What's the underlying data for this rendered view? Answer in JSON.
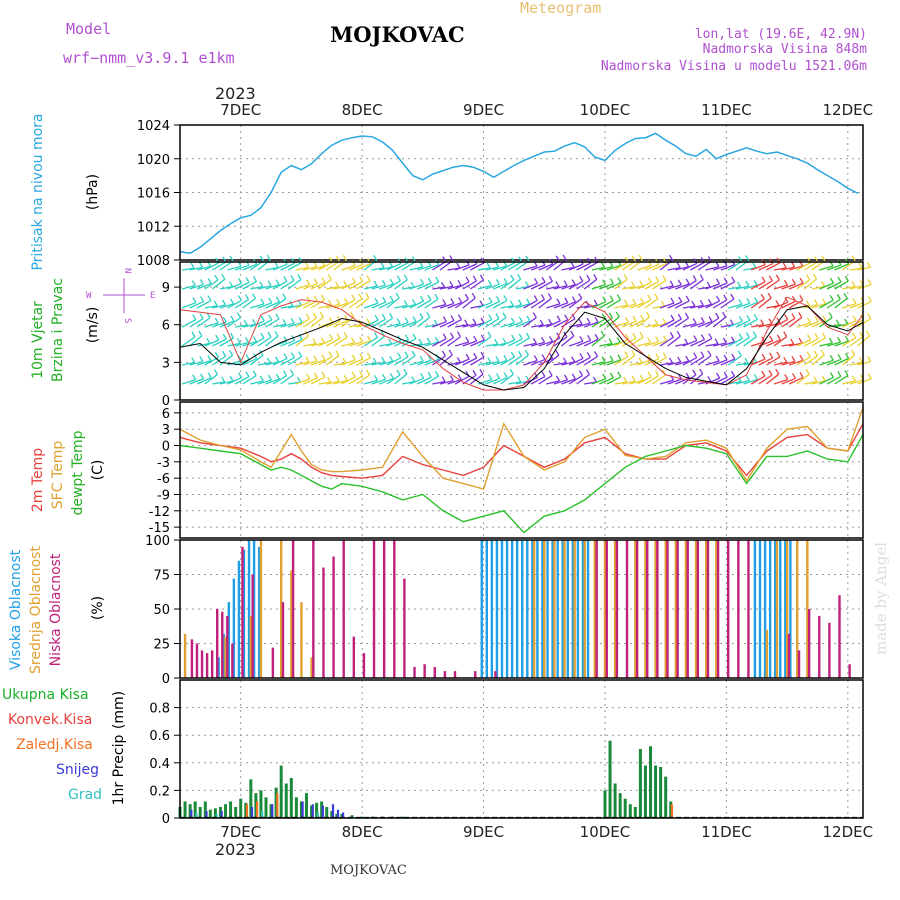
{
  "header": {
    "model_label": "Model",
    "model_name": "wrf−nmm_v3.9.1  e1km",
    "title": "MOJKOVAC",
    "subtitle": "Meteogram",
    "lonlat": "lon,lat (19.6E, 42.9N)",
    "altitude": "Nadmorska Visina 848m",
    "model_altitude": "Nadmorska Visina u modelu 1521.06m",
    "footer_station": "MOJKOVAC",
    "credit": "made by Angel"
  },
  "colors": {
    "pressure": "#2aa6e0",
    "wind_speed": "#000000",
    "temp2m": "#e8413c",
    "sfc_temp": "#e0a030",
    "dewpt": "#2cc02c",
    "high_cloud": "#1e9fe8",
    "mid_cloud": "#e0a030",
    "low_cloud": "#c0207c",
    "total_precip": "#1a8a3a",
    "conv_precip": "#e8413c",
    "frozen_precip": "#f07020",
    "snow": "#3a3ad8",
    "graupel": "#30c0c0"
  },
  "time_axis": {
    "year": "2023",
    "days": [
      "7DEC",
      "8DEC",
      "9DEC",
      "10DEC",
      "11DEC",
      "12DEC"
    ],
    "start_hour": -12,
    "end_hour": 123
  },
  "chart_data": [
    {
      "type": "line",
      "panel": "pressure",
      "ylabel": [
        "Pritisak na nivou mora",
        "(hPa)"
      ],
      "ylim": [
        1008,
        1024
      ],
      "yticks": [
        1008,
        1012,
        1016,
        1020,
        1024
      ],
      "x_hours": [
        -12,
        -10,
        -8,
        -6,
        -4,
        -2,
        0,
        2,
        4,
        6,
        8,
        10,
        12,
        14,
        16,
        18,
        20,
        22,
        24,
        26,
        28,
        30,
        32,
        34,
        36,
        38,
        40,
        42,
        44,
        46,
        48,
        50,
        52,
        54,
        56,
        58,
        60,
        62,
        64,
        66,
        68,
        70,
        72,
        74,
        76,
        78,
        80,
        82,
        84,
        86,
        88,
        90,
        92,
        94,
        96,
        98,
        100,
        102,
        104,
        106,
        108,
        110,
        112,
        114,
        116,
        118,
        120,
        122
      ],
      "values": [
        1009,
        1008.8,
        1009.5,
        1010.5,
        1011.5,
        1012.3,
        1013,
        1013.3,
        1014.2,
        1016,
        1018.4,
        1019.2,
        1018.7,
        1019.4,
        1020.6,
        1021.6,
        1022.2,
        1022.5,
        1022.7,
        1022.6,
        1022,
        1021,
        1019.5,
        1018,
        1017.5,
        1018.2,
        1018.6,
        1019,
        1019.2,
        1019,
        1018.5,
        1017.8,
        1018.5,
        1019.2,
        1019.8,
        1020.3,
        1020.8,
        1020.9,
        1021.5,
        1021.9,
        1021.4,
        1020.2,
        1019.8,
        1021,
        1021.8,
        1022.4,
        1022.5,
        1023,
        1022.2,
        1021.5,
        1020.6,
        1020.3,
        1021.1,
        1020,
        1020.5,
        1020.9,
        1021.3,
        1020.9,
        1020.6,
        1020.8,
        1020.4,
        1020,
        1019.5,
        1018.7,
        1018,
        1017.3,
        1016.5,
        1015.9
      ]
    },
    {
      "type": "line",
      "panel": "wind",
      "ylabel": [
        "10m Vjetar",
        "Brzina i Pravac",
        "(m/s)"
      ],
      "compass": [
        "N",
        "W",
        "E",
        "S"
      ],
      "ylim": [
        0,
        11
      ],
      "yticks": [
        0,
        3,
        6,
        9
      ],
      "x_hours": [
        -12,
        -8,
        -4,
        0,
        4,
        8,
        12,
        16,
        20,
        24,
        28,
        32,
        36,
        40,
        44,
        48,
        52,
        56,
        60,
        64,
        68,
        72,
        76,
        80,
        84,
        88,
        92,
        96,
        100,
        104,
        108,
        112,
        116,
        120,
        123
      ],
      "values": [
        4.2,
        4.5,
        3,
        2.8,
        3.8,
        4.6,
        5.2,
        5.8,
        6.5,
        6.2,
        5.5,
        4.8,
        4.2,
        3.2,
        2.2,
        1.2,
        0.8,
        1,
        2.5,
        5.2,
        7,
        6.5,
        4.5,
        3.5,
        2.5,
        1.8,
        1.5,
        1.2,
        2.5,
        5,
        7.2,
        7.5,
        6,
        5.5,
        6.2
      ],
      "red_series": [
        7.2,
        7,
        6.8,
        3,
        6.8,
        7.5,
        8,
        7.8,
        7.2,
        6,
        5.2,
        4.5,
        4,
        2.5,
        1.4,
        0.8,
        0.8,
        1.2,
        3,
        6,
        7.8,
        7,
        5,
        3.5,
        2,
        1.6,
        1.4,
        1.2,
        2,
        5.5,
        8.2,
        7.5,
        5.8,
        5.2,
        6.8
      ],
      "barb_colors": [
        "#2ad0c0",
        "#2ad0c0",
        "#2ad0c0",
        "#2ad0c0",
        "#2ad0c0",
        "#e8d030",
        "#e8d030",
        "#e8d030",
        "#2ad0c0",
        "#2ad0c0",
        "#2ad0c0",
        "#7a30d8",
        "#7a30d8",
        "#2ad0c0",
        "#2ad0c0",
        "#7a30d8",
        "#7a30d8",
        "#7a30d8",
        "#30c030",
        "#e8d030",
        "#e8d030",
        "#7a30d8",
        "#7a30d8",
        "#7a30d8",
        "#2ad0c0",
        "#e8413c",
        "#e8413c",
        "#e8d030",
        "#30c030",
        "#e8d030"
      ]
    },
    {
      "type": "line",
      "panel": "temperature",
      "ylabel": [
        "2m Temp",
        "SFC Temp",
        "dewpt Temp",
        "(C)"
      ],
      "ylim": [
        -17,
        8
      ],
      "yticks": [
        -15,
        -12,
        -9,
        -6,
        -3,
        0,
        3,
        6
      ],
      "x_hours": [
        -12,
        -8,
        -4,
        0,
        4,
        6,
        8,
        10,
        12,
        14,
        16,
        18,
        20,
        24,
        28,
        32,
        36,
        40,
        44,
        48,
        52,
        56,
        60,
        64,
        68,
        72,
        76,
        80,
        84,
        88,
        92,
        96,
        100,
        104,
        108,
        112,
        116,
        120,
        123
      ],
      "series": [
        {
          "name": "2m Temp",
          "color": "#e8413c",
          "values": [
            1.5,
            0.5,
            0,
            -0.5,
            -2,
            -3,
            -2.5,
            -1.5,
            -2.5,
            -4,
            -5,
            -5.5,
            -5.7,
            -6,
            -5.5,
            -2,
            -3.5,
            -4.5,
            -5.5,
            -4,
            0,
            -2,
            -4,
            -2.5,
            0.5,
            1.5,
            -1.5,
            -2.5,
            -2.5,
            0,
            0.5,
            -1,
            -5.5,
            -1,
            1.5,
            2,
            -0.5,
            -1,
            4
          ]
        },
        {
          "name": "SFC Temp",
          "color": "#e0a030",
          "values": [
            3,
            1,
            0,
            -0.8,
            -3,
            -4,
            -1,
            2,
            -1,
            -3.5,
            -4.5,
            -4.8,
            -4.8,
            -4.5,
            -4,
            2.5,
            -2,
            -6,
            -7,
            -8,
            4,
            -2,
            -4.5,
            -3,
            1.5,
            3,
            -1.8,
            -2.5,
            -2,
            0.5,
            1,
            -0.5,
            -6.5,
            -0.5,
            3,
            3.5,
            -0.5,
            -1,
            7
          ]
        },
        {
          "name": "dewpt Temp",
          "color": "#2cc02c",
          "values": [
            0,
            -0.5,
            -1,
            -1.5,
            -3.5,
            -4.5,
            -4,
            -4.5,
            -5.5,
            -6.5,
            -7.5,
            -8,
            -7,
            -7.5,
            -8.5,
            -10,
            -9,
            -12,
            -14,
            -13,
            -12,
            -16,
            -13,
            -12,
            -10,
            -7,
            -4,
            -2,
            -1,
            0,
            -0.5,
            -1.5,
            -7,
            -2,
            -2,
            -1,
            -2.5,
            -3,
            2
          ]
        }
      ]
    },
    {
      "type": "bar",
      "panel": "cloud",
      "ylabel": [
        "Visoka Oblacnost",
        "Srednja Oblacnost",
        "Niska Oblacnost",
        "(%)"
      ],
      "ylim": [
        0,
        100
      ],
      "yticks": [
        0,
        25,
        50,
        75,
        100
      ],
      "series": [
        {
          "name": "Visoka Oblacnost",
          "color": "#1e9fe8",
          "x_hours": [
            -4,
            -3,
            -2,
            -1,
            0,
            1,
            2,
            3,
            4,
            48,
            49,
            50,
            51,
            52,
            53,
            54,
            55,
            56,
            57,
            58,
            59,
            60,
            61,
            62,
            63,
            64,
            65,
            66,
            67,
            68,
            69,
            102,
            103,
            104,
            105,
            106,
            107,
            108,
            109
          ],
          "values": [
            15,
            32,
            55,
            72,
            85,
            93,
            100,
            100,
            95,
            100,
            100,
            100,
            100,
            100,
            100,
            100,
            100,
            100,
            100,
            100,
            100,
            100,
            100,
            100,
            100,
            100,
            100,
            100,
            100,
            100,
            100,
            100,
            100,
            100,
            100,
            100,
            100,
            100,
            100
          ]
        },
        {
          "name": "Srednja Oblacnost",
          "color": "#e0a030",
          "x_hours": [
            -11,
            -3,
            2,
            4,
            8,
            10,
            12,
            14,
            58,
            60,
            62,
            64,
            66,
            68,
            70,
            72,
            74,
            78,
            80,
            82,
            84,
            86,
            88,
            90,
            92,
            94,
            104,
            106,
            108,
            110,
            112
          ],
          "values": [
            32,
            30,
            45,
            100,
            100,
            78,
            55,
            15,
            100,
            100,
            100,
            100,
            100,
            100,
            100,
            100,
            100,
            100,
            100,
            100,
            100,
            100,
            100,
            100,
            100,
            100,
            35,
            100,
            100,
            100,
            100
          ]
        },
        {
          "name": "Niska Oblacnost",
          "color": "#c0207c",
          "x_hours": [
            -10,
            -9,
            -8,
            -7,
            -6,
            -5,
            -4,
            -3,
            -2,
            0,
            2,
            6,
            8,
            10,
            14,
            16,
            18,
            20,
            22,
            24,
            26,
            28,
            30,
            32,
            34,
            36,
            38,
            40,
            42,
            46,
            50,
            70,
            72,
            74,
            76,
            78,
            80,
            82,
            84,
            86,
            88,
            90,
            92,
            94,
            96,
            98,
            100,
            108,
            110,
            112,
            114,
            116,
            118,
            120
          ],
          "values": [
            28,
            25,
            20,
            18,
            20,
            50,
            48,
            45,
            25,
            95,
            75,
            22,
            55,
            100,
            100,
            80,
            88,
            100,
            30,
            18,
            100,
            100,
            100,
            72,
            8,
            10,
            8,
            5,
            5,
            5,
            5,
            100,
            100,
            100,
            100,
            100,
            100,
            100,
            100,
            100,
            100,
            100,
            100,
            100,
            100,
            100,
            100,
            32,
            20,
            50,
            45,
            40,
            60,
            10
          ]
        }
      ]
    },
    {
      "type": "bar",
      "panel": "precipitation",
      "ylabel": [
        "1hr Precip",
        "(mm)"
      ],
      "legend": [
        "Ukupna Kisa",
        "Konvek.Kisa",
        "Zaledj.Kisa",
        "Snijeg",
        "Grad"
      ],
      "ylim": [
        0,
        1.0
      ],
      "yticks": [
        0,
        0.2,
        0.4,
        0.6,
        0.8
      ],
      "series": [
        {
          "name": "Ukupna Kisa",
          "color": "#1a8a3a",
          "x_hours": [
            -12,
            -11,
            -10,
            -9,
            -8,
            -7,
            -6,
            -5,
            -4,
            -3,
            -2,
            -1,
            0,
            1,
            2,
            3,
            4,
            5,
            6,
            7,
            8,
            9,
            10,
            11,
            12,
            13,
            14,
            15,
            16,
            17,
            18,
            19,
            20,
            22,
            24,
            26,
            28,
            30,
            32,
            72,
            73,
            74,
            75,
            76,
            77,
            78,
            79,
            80,
            81,
            82,
            83,
            84,
            85
          ],
          "values": [
            0.08,
            0.12,
            0.1,
            0.12,
            0.08,
            0.12,
            0.06,
            0.07,
            0.08,
            0.1,
            0.12,
            0.08,
            0.14,
            0.11,
            0.28,
            0.18,
            0.2,
            0.15,
            0.1,
            0.22,
            0.38,
            0.25,
            0.29,
            0.15,
            0.12,
            0.18,
            0.09,
            0.11,
            0.12,
            0.08,
            0.05,
            0.03,
            0.03,
            0.02,
            0.01,
            0.01,
            0.01,
            0.01,
            0.01,
            0.2,
            0.56,
            0.25,
            0.18,
            0.14,
            0.1,
            0.08,
            0.5,
            0.38,
            0.52,
            0.38,
            0.37,
            0.3,
            0.12
          ]
        },
        {
          "name": "Zaledj.Kisa",
          "color": "#f07020",
          "x_hours": [
            1,
            3,
            7,
            85
          ],
          "values": [
            0.1,
            0.12,
            0.18,
            0.1
          ]
        },
        {
          "name": "Snijeg",
          "color": "#3a3ad8",
          "x_hours": [
            -10,
            -7,
            -4,
            2,
            6,
            12,
            14,
            16,
            18,
            19,
            20
          ],
          "values": [
            0.06,
            0.05,
            0.05,
            0.08,
            0.1,
            0.12,
            0.1,
            0.09,
            0.1,
            0.06,
            0.04
          ]
        },
        {
          "name": "Grad",
          "color": "#30c0c0",
          "x_hours": [
            -9,
            -5,
            4,
            15
          ],
          "values": [
            0.04,
            0.03,
            0.05,
            0.04
          ]
        }
      ]
    }
  ]
}
